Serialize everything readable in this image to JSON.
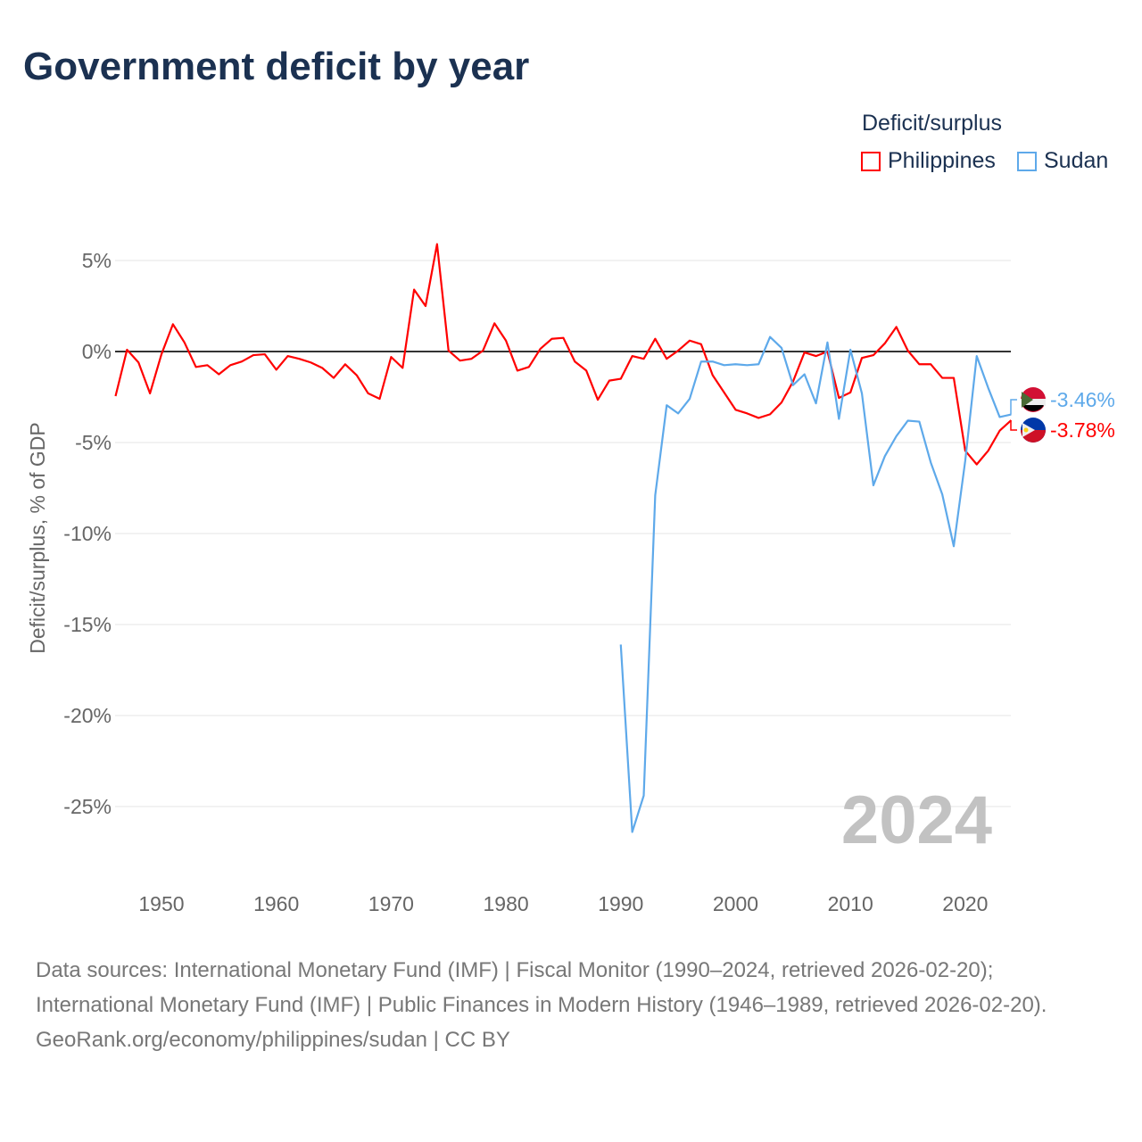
{
  "title": "Government deficit by year",
  "legend": {
    "title": "Deficit/surplus",
    "items": [
      {
        "name": "Philippines",
        "color": "#ff0000"
      },
      {
        "name": "Sudan",
        "color": "#5ea9ea"
      }
    ]
  },
  "year_watermark": "2024",
  "footer": {
    "sources": "Data sources: International Monetary Fund (IMF) | Fiscal Monitor (1990–2024, retrieved 2026-02-20); International Monetary Fund (IMF) | Public Finances in Modern History (1946–1989, retrieved 2026-02-20).",
    "credit": "GeoRank.org/economy/philippines/sudan | CC BY"
  },
  "chart_data": {
    "type": "line",
    "title": "Government deficit by year",
    "xlabel": "",
    "ylabel": "Deficit/surplus, % of GDP",
    "xlim": [
      1946,
      2024
    ],
    "ylim": [
      -28,
      7
    ],
    "xticks": [
      1950,
      1960,
      1970,
      1980,
      1990,
      2000,
      2010,
      2020
    ],
    "yticks": [
      5,
      0,
      -5,
      -10,
      -15,
      -20,
      -25
    ],
    "ytick_labels": [
      "5%",
      "0%",
      "-5%",
      "-10%",
      "-15%",
      "-20%",
      "-25%"
    ],
    "grid": true,
    "legend_position": "top-right",
    "series": [
      {
        "name": "Philippines",
        "color": "#ff0000",
        "start_year": 1946,
        "end_label": "-3.78%",
        "values": [
          -2.45,
          0.1,
          -0.6,
          -2.3,
          -0.15,
          1.5,
          0.5,
          -0.85,
          -0.75,
          -1.25,
          -0.75,
          -0.55,
          -0.2,
          -0.15,
          -1.0,
          -0.25,
          -0.4,
          -0.6,
          -0.9,
          -1.45,
          -0.7,
          -1.3,
          -2.3,
          -2.6,
          -0.3,
          -0.9,
          3.4,
          2.5,
          5.9,
          0.05,
          -0.5,
          -0.4,
          0.05,
          1.55,
          0.6,
          -1.05,
          -0.85,
          0.15,
          0.7,
          0.75,
          -0.55,
          -1.05,
          -2.65,
          -1.6,
          -1.5,
          -0.25,
          -0.4,
          0.7,
          -0.4,
          0.05,
          0.6,
          0.4,
          -1.3,
          -2.25,
          -3.2,
          -3.4,
          -3.65,
          -3.45,
          -2.8,
          -1.65,
          -0.05,
          -0.25,
          0,
          -2.55,
          -2.25,
          -0.35,
          -0.2,
          0.45,
          1.35,
          0.05,
          -0.7,
          -0.7,
          -1.45,
          -1.45,
          -5.45,
          -6.2,
          -5.45,
          -4.35,
          -3.78
        ]
      },
      {
        "name": "Sudan",
        "color": "#5ea9ea",
        "start_year": 1990,
        "end_label": "-3.46%",
        "values": [
          -16.1,
          -26.4,
          -24.4,
          -7.9,
          -2.95,
          -3.4,
          -2.6,
          -0.55,
          -0.55,
          -0.75,
          -0.7,
          -0.75,
          -0.7,
          0.8,
          0.2,
          -1.85,
          -1.25,
          -2.85,
          0.5,
          -3.7,
          0.1,
          -2.3,
          -7.35,
          -5.75,
          -4.65,
          -3.8,
          -3.85,
          -6.1,
          -7.85,
          -10.7,
          -6.0,
          -0.25,
          -2.0,
          -3.6,
          -3.46
        ]
      }
    ]
  }
}
